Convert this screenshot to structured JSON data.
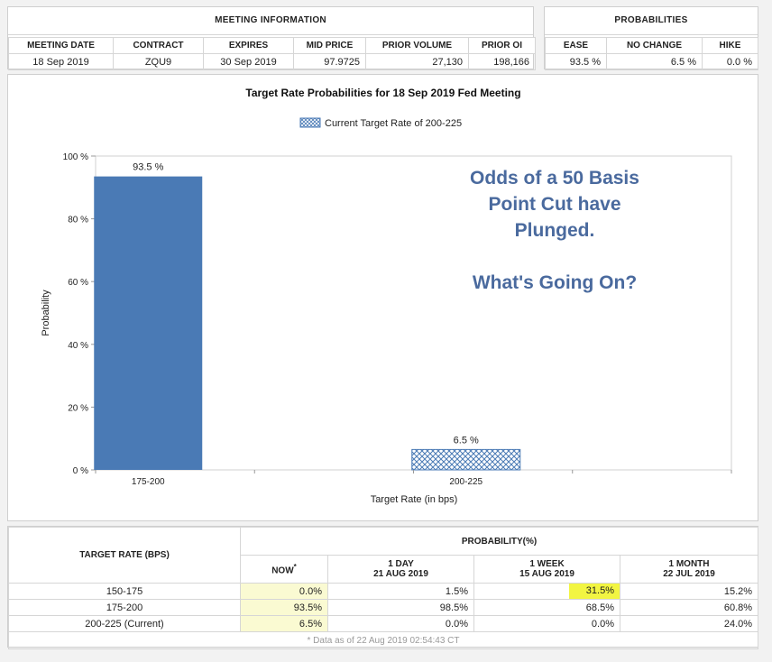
{
  "meeting_info": {
    "title": "MEETING INFORMATION",
    "headers": [
      "MEETING DATE",
      "CONTRACT",
      "EXPIRES",
      "MID PRICE",
      "PRIOR VOLUME",
      "PRIOR OI"
    ],
    "row": [
      "18 Sep 2019",
      "ZQU9",
      "30 Sep 2019",
      "97.9725",
      "27,130",
      "198,166"
    ]
  },
  "probabilities": {
    "title": "PROBABILITIES",
    "headers": [
      "EASE",
      "NO CHANGE",
      "HIKE"
    ],
    "row": [
      "93.5 %",
      "6.5 %",
      "0.0 %"
    ]
  },
  "chart_data": {
    "type": "bar",
    "title": "Target Rate Probabilities for 18 Sep 2019 Fed Meeting",
    "legend": "Current Target Rate of 200-225",
    "legend_position": "top-center",
    "categories": [
      "175-200",
      "200-225"
    ],
    "values": [
      93.5,
      6.5
    ],
    "value_labels": [
      "93.5 %",
      "6.5 %"
    ],
    "hatched": [
      false,
      true
    ],
    "xlabel": "Target Rate (in bps)",
    "ylabel": "Probability",
    "ylim": [
      0,
      100
    ],
    "yticks": [
      0,
      20,
      40,
      60,
      80,
      100
    ],
    "ytick_labels": [
      "0 %",
      "20 %",
      "40 %",
      "60 %",
      "80 %",
      "100 %"
    ],
    "grid": false,
    "bar_color": "#4a7ab5",
    "annotation": [
      "Odds of a 50 Basis",
      "Point Cut have",
      "Plunged.",
      "",
      "What's Going On?"
    ],
    "annotation_color": "#4a6a9e"
  },
  "prob_table": {
    "col0_header": "TARGET RATE (BPS)",
    "group_header": "PROBABILITY(%)",
    "now_header": "NOW",
    "now_mark": "*",
    "cols": [
      {
        "line1": "1 DAY",
        "line2": "21 AUG 2019"
      },
      {
        "line1": "1 WEEK",
        "line2": "15 AUG 2019"
      },
      {
        "line1": "1 MONTH",
        "line2": "22 JUL 2019"
      }
    ],
    "rows": [
      {
        "rate": "150-175",
        "now": "0.0%",
        "day": "1.5%",
        "week": "31.5%",
        "month": "15.2%"
      },
      {
        "rate": "175-200",
        "now": "93.5%",
        "day": "98.5%",
        "week": "68.5%",
        "month": "60.8%"
      },
      {
        "rate": "200-225 (Current)",
        "now": "6.5%",
        "day": "0.0%",
        "week": "0.0%",
        "month": "24.0%"
      }
    ],
    "footnote": "* Data as of 22 Aug 2019 02:54:43 CT"
  }
}
